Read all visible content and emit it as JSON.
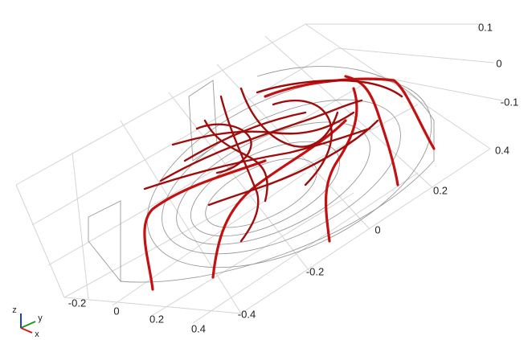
{
  "axes": {
    "z_ticks": [
      "0.1",
      "0",
      "-0.1"
    ],
    "y_ticks": [
      "0.4",
      "0.2",
      "0",
      "-0.2",
      "-0.4"
    ],
    "x_ticks": [
      "-0.2",
      "0",
      "0.2",
      "0.4"
    ]
  },
  "triad": {
    "z": "z",
    "y": "y",
    "x": "x"
  }
}
